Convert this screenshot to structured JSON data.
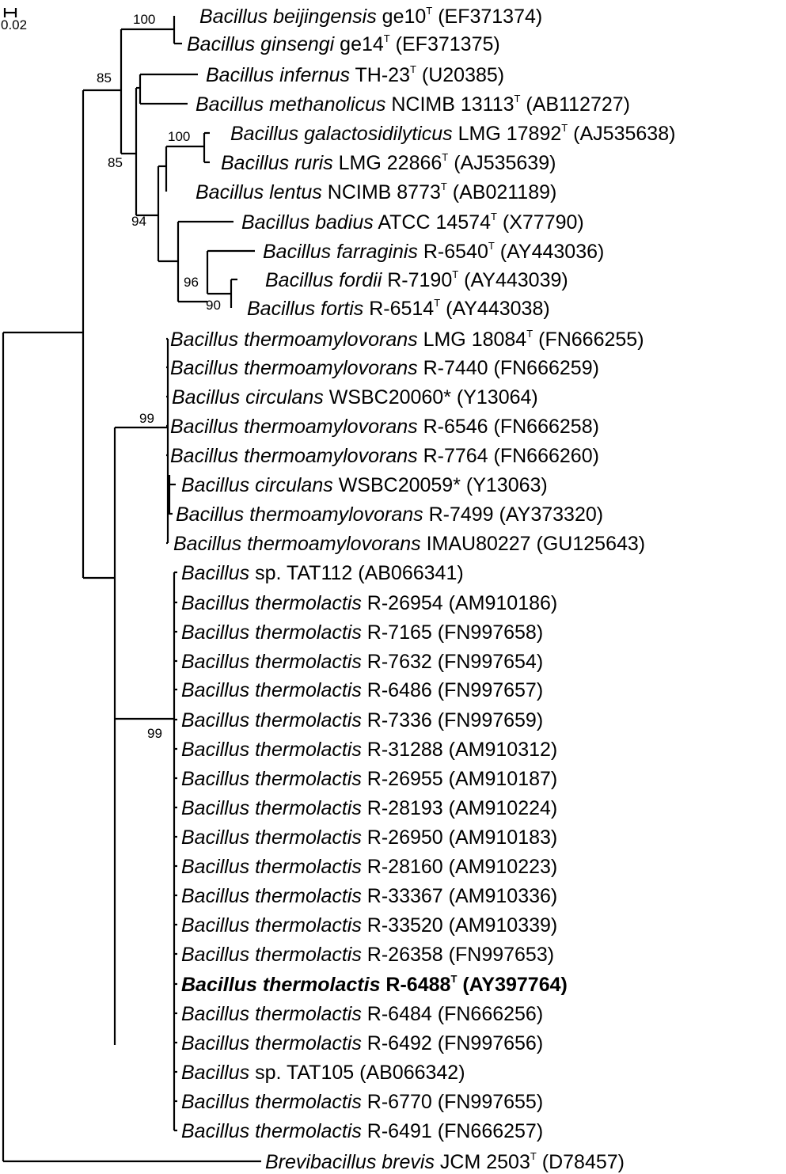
{
  "scale_bar": {
    "label": "0.02"
  },
  "taxa": [
    {
      "genus": "Bacillus",
      "epithet": "beijingensis",
      "strain": "ge10",
      "type": true,
      "accession": "(EF371374)",
      "bold": false
    },
    {
      "genus": "Bacillus",
      "epithet": "ginsengi",
      "strain": "ge14",
      "type": true,
      "accession": "(EF371375)",
      "bold": false
    },
    {
      "genus": "Bacillus",
      "epithet": "infernus",
      "strain": "TH-23",
      "type": true,
      "accession": "(U20385)",
      "bold": false
    },
    {
      "genus": "Bacillus",
      "epithet": "methanolicus",
      "strain": "NCIMB 13113",
      "type": true,
      "accession": "(AB112727)",
      "bold": false
    },
    {
      "genus": "Bacillus",
      "epithet": "galactosidilyticus",
      "strain": "LMG 17892",
      "type": true,
      "accession": "(AJ535638)",
      "bold": false
    },
    {
      "genus": "Bacillus",
      "epithet": "ruris",
      "strain": "LMG 22866",
      "type": true,
      "accession": "(AJ535639)",
      "bold": false
    },
    {
      "genus": "Bacillus",
      "epithet": "lentus",
      "strain": "NCIMB 8773",
      "type": true,
      "accession": "(AB021189)",
      "bold": false
    },
    {
      "genus": "Bacillus",
      "epithet": "badius",
      "strain": "ATCC 14574",
      "type": true,
      "accession": "(X77790)",
      "bold": false
    },
    {
      "genus": "Bacillus",
      "epithet": "farraginis",
      "strain": "R-6540",
      "type": true,
      "accession": "(AY443036)",
      "bold": false
    },
    {
      "genus": "Bacillus",
      "epithet": "fordii",
      "strain": "R-7190",
      "type": true,
      "accession": "(AY443039)",
      "bold": false
    },
    {
      "genus": "Bacillus",
      "epithet": "fortis",
      "strain": "R-6514",
      "type": true,
      "accession": "(AY443038)",
      "bold": false
    },
    {
      "genus": "Bacillus",
      "epithet": "thermoamylovorans",
      "strain": "LMG 18084",
      "type": true,
      "accession": "(FN666255)",
      "bold": false
    },
    {
      "genus": "Bacillus",
      "epithet": "thermoamylovorans",
      "strain": "R-7440",
      "type": false,
      "accession": "(FN666259)",
      "bold": false
    },
    {
      "genus": "Bacillus",
      "epithet": "circulans",
      "strain": "WSBC20060*",
      "type": false,
      "accession": "(Y13064)",
      "bold": false
    },
    {
      "genus": "Bacillus",
      "epithet": "thermoamylovorans",
      "strain": "R-6546",
      "type": false,
      "accession": "(FN666258)",
      "bold": false
    },
    {
      "genus": "Bacillus",
      "epithet": "thermoamylovorans",
      "strain": "R-7764",
      "type": false,
      "accession": "(FN666260)",
      "bold": false
    },
    {
      "genus": "Bacillus",
      "epithet": "circulans",
      "strain": "WSBC20059*",
      "type": false,
      "accession": "(Y13063)",
      "bold": false
    },
    {
      "genus": "Bacillus",
      "epithet": "thermoamylovorans",
      "strain": "R-7499",
      "type": false,
      "accession": "(AY373320)",
      "bold": false
    },
    {
      "genus": "Bacillus",
      "epithet": "thermoamylovorans",
      "strain": "IMAU80227",
      "type": false,
      "accession": "(GU125643)",
      "bold": false
    },
    {
      "genus": "Bacillus",
      "epithet": "",
      "sp": "sp.",
      "strain": "TAT112",
      "type": false,
      "accession": "(AB066341)",
      "bold": false
    },
    {
      "genus": "Bacillus",
      "epithet": "thermolactis",
      "strain": "R-26954",
      "type": false,
      "accession": "(AM910186)",
      "bold": false
    },
    {
      "genus": "Bacillus",
      "epithet": "thermolactis",
      "strain": "R-7165",
      "type": false,
      "accession": "(FN997658)",
      "bold": false
    },
    {
      "genus": "Bacillus",
      "epithet": "thermolactis",
      "strain": "R-7632",
      "type": false,
      "accession": "(FN997654)",
      "bold": false
    },
    {
      "genus": "Bacillus",
      "epithet": "thermolactis",
      "strain": "R-6486",
      "type": false,
      "accession": "(FN997657)",
      "bold": false
    },
    {
      "genus": "Bacillus",
      "epithet": "thermolactis",
      "strain": "R-7336",
      "type": false,
      "accession": "(FN997659)",
      "bold": false
    },
    {
      "genus": "Bacillus",
      "epithet": "thermolactis",
      "strain": "R-31288",
      "type": false,
      "accession": "(AM910312)",
      "bold": false
    },
    {
      "genus": "Bacillus",
      "epithet": "thermolactis",
      "strain": "R-26955",
      "type": false,
      "accession": "(AM910187)",
      "bold": false
    },
    {
      "genus": "Bacillus",
      "epithet": "thermolactis",
      "strain": "R-28193",
      "type": false,
      "accession": "(AM910224)",
      "bold": false
    },
    {
      "genus": "Bacillus",
      "epithet": "thermolactis",
      "strain": "R-26950",
      "type": false,
      "accession": "(AM910183)",
      "bold": false
    },
    {
      "genus": "Bacillus",
      "epithet": "thermolactis",
      "strain": "R-28160",
      "type": false,
      "accession": "(AM910223)",
      "bold": false
    },
    {
      "genus": "Bacillus",
      "epithet": "thermolactis",
      "strain": "R-33367",
      "type": false,
      "accession": "(AM910336)",
      "bold": false
    },
    {
      "genus": "Bacillus",
      "epithet": "thermolactis",
      "strain": "R-33520",
      "type": false,
      "accession": "(AM910339)",
      "bold": false
    },
    {
      "genus": "Bacillus",
      "epithet": "thermolactis",
      "strain": "R-26358",
      "type": false,
      "accession": "(FN997653)",
      "bold": false
    },
    {
      "genus": "Bacillus",
      "epithet": "thermolactis",
      "strain": "R-6488",
      "type": true,
      "accession": "(AY397764)",
      "bold": true
    },
    {
      "genus": "Bacillus",
      "epithet": "thermolactis",
      "strain": "R-6484",
      "type": false,
      "accession": "(FN666256)",
      "bold": false
    },
    {
      "genus": "Bacillus",
      "epithet": "thermolactis",
      "strain": "R-6492",
      "type": false,
      "accession": "(FN997656)",
      "bold": false
    },
    {
      "genus": "Bacillus",
      "epithet": "",
      "sp": "sp.",
      "strain": "TAT105",
      "type": false,
      "accession": "(AB066342)",
      "bold": false
    },
    {
      "genus": "Bacillus",
      "epithet": "thermolactis",
      "strain": "R-6770",
      "type": false,
      "accession": "(FN997655)",
      "bold": false
    },
    {
      "genus": "Bacillus",
      "epithet": "thermolactis",
      "strain": "R-6491",
      "type": false,
      "accession": "(FN666257)",
      "bold": false
    },
    {
      "genus": "Brevibacillus",
      "epithet": "brevis",
      "strain": "JCM 2503",
      "type": true,
      "accession": "(D78457)",
      "bold": false
    }
  ],
  "bootstrap_values": [
    "100",
    "85",
    "100",
    "85",
    "94",
    "96",
    "90",
    "99",
    "99"
  ]
}
